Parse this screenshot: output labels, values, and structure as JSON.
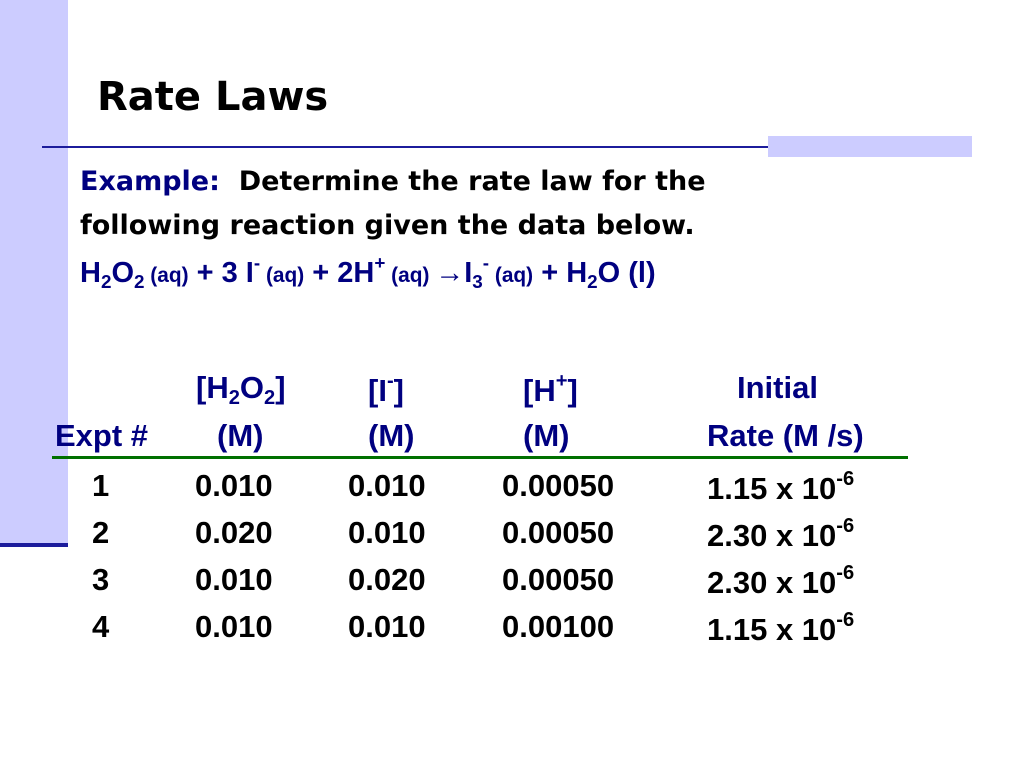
{
  "title": "Rate Laws",
  "example": {
    "label": "Example:",
    "line1": "  Determine the rate law for the",
    "line2": "following reaction given the data below."
  },
  "equation": [
    {
      "text": "H"
    },
    {
      "text": "2",
      "style": "sub"
    },
    {
      "text": "O"
    },
    {
      "text": "2",
      "style": "sub"
    },
    {
      "text": " (aq)",
      "style": "small"
    },
    {
      "text": " + 3 I"
    },
    {
      "text": "-",
      "style": "sup"
    },
    {
      "text": " (aq)",
      "style": "small"
    },
    {
      "text": " + 2H"
    },
    {
      "text": "+",
      "style": "sup"
    },
    {
      "text": " (aq) ",
      "style": "small"
    },
    {
      "text": "→I"
    },
    {
      "text": "3",
      "style": "sub"
    },
    {
      "text": "-",
      "style": "sup"
    },
    {
      "text": " (aq)",
      "style": "small"
    },
    {
      "text": " + H"
    },
    {
      "text": "2",
      "style": "sub"
    },
    {
      "text": "O (l)"
    }
  ],
  "table": {
    "header": [
      {
        "line2": [
          {
            "text": "Expt #"
          }
        ]
      },
      {
        "line1": [
          {
            "text": "[H"
          },
          {
            "text": "2",
            "style": "sub"
          },
          {
            "text": "O"
          },
          {
            "text": "2",
            "style": "sub"
          },
          {
            "text": "]"
          }
        ],
        "line2": [
          {
            "text": "(M)"
          }
        ]
      },
      {
        "line1": [
          {
            "text": "[I"
          },
          {
            "text": "-",
            "style": "sup"
          },
          {
            "text": "]"
          }
        ],
        "line2": [
          {
            "text": "(M)"
          }
        ]
      },
      {
        "line1": [
          {
            "text": "[H"
          },
          {
            "text": "+",
            "style": "sup"
          },
          {
            "text": "]"
          }
        ],
        "line2": [
          {
            "text": "(M)"
          }
        ]
      },
      {
        "line1": [
          {
            "text": "Initial"
          }
        ],
        "line2": [
          {
            "text": "Rate (M /s)"
          }
        ]
      }
    ],
    "rows": [
      [
        [
          {
            "text": "1"
          }
        ],
        [
          {
            "text": "0.010"
          }
        ],
        [
          {
            "text": "0.010"
          }
        ],
        [
          {
            "text": "0.00050"
          }
        ],
        [
          {
            "text": "1.15 x 10"
          },
          {
            "text": "-6",
            "style": "sup"
          }
        ]
      ],
      [
        [
          {
            "text": "2"
          }
        ],
        [
          {
            "text": "0.020"
          }
        ],
        [
          {
            "text": "0.010"
          }
        ],
        [
          {
            "text": "0.00050"
          }
        ],
        [
          {
            "text": "2.30 x 10"
          },
          {
            "text": "-6",
            "style": "sup"
          }
        ]
      ],
      [
        [
          {
            "text": "3"
          }
        ],
        [
          {
            "text": "0.010"
          }
        ],
        [
          {
            "text": "0.020"
          }
        ],
        [
          {
            "text": "0.00050"
          }
        ],
        [
          {
            "text": "2.30 x 10"
          },
          {
            "text": "-6",
            "style": "sup"
          }
        ]
      ],
      [
        [
          {
            "text": "4"
          }
        ],
        [
          {
            "text": "0.010"
          }
        ],
        [
          {
            "text": "0.010"
          }
        ],
        [
          {
            "text": "0.00100"
          }
        ],
        [
          {
            "text": "1.15 x 10"
          },
          {
            "text": "-6",
            "style": "sup"
          }
        ]
      ]
    ]
  }
}
